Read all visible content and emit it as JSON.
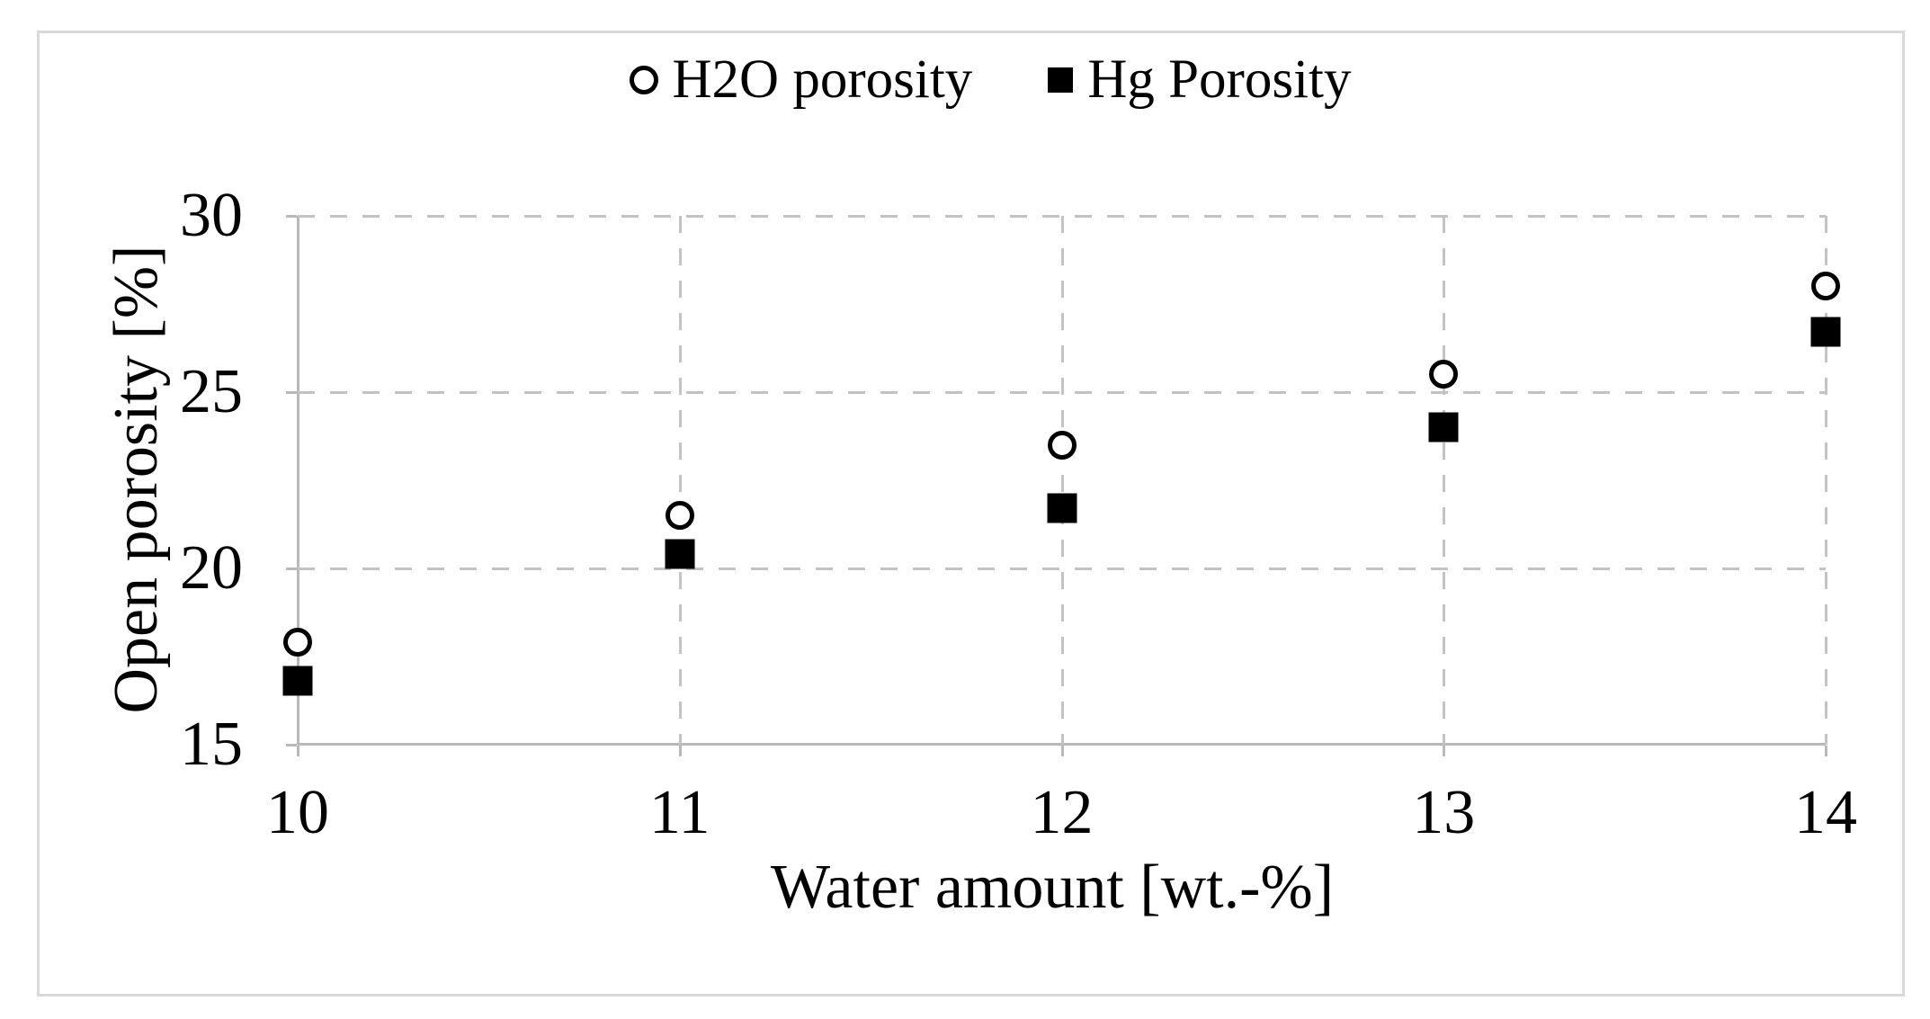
{
  "chart_data": {
    "type": "scatter",
    "x": [
      10,
      11,
      12,
      13,
      14
    ],
    "series": [
      {
        "name": "H2O porosity",
        "marker": "open-circle",
        "values": [
          17.9,
          21.5,
          23.5,
          25.5,
          28.0
        ]
      },
      {
        "name": "Hg Porosity",
        "marker": "filled-square",
        "values": [
          16.8,
          20.4,
          21.7,
          24.0,
          26.7
        ]
      }
    ],
    "title": "",
    "xlabel": "Water amount [wt.-%]",
    "ylabel": "Open porosity [%]",
    "xlim": [
      10,
      14
    ],
    "ylim": [
      15,
      30
    ],
    "x_ticks": [
      10,
      11,
      12,
      13,
      14
    ],
    "y_ticks": [
      30,
      25,
      20,
      15
    ],
    "grid": "dashed",
    "legend_position": "top-center"
  },
  "legend": {
    "items": [
      {
        "label": "H2O porosity",
        "marker": "open-circle"
      },
      {
        "label": "Hg Porosity",
        "marker": "filled-square"
      }
    ]
  },
  "colors": {
    "marker": "#000000",
    "gridline": "#c3c3c3",
    "axis_line": "#b9b9b9",
    "figure_border": "#d9d9d9",
    "background": "#ffffff",
    "text": "#000000"
  }
}
